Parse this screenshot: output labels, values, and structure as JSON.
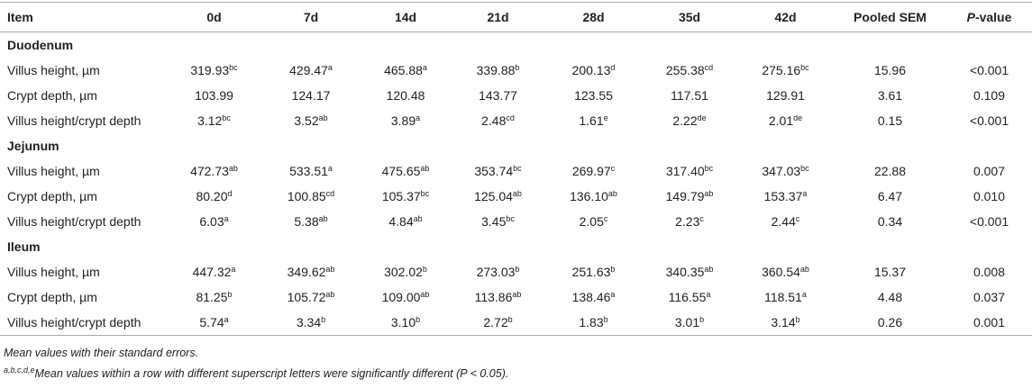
{
  "table": {
    "header": [
      "Item",
      "0d",
      "7d",
      "14d",
      "21d",
      "28d",
      "35d",
      "42d",
      "Pooled SEM",
      {
        "em": "P",
        "text": "-value"
      }
    ],
    "sections": [
      {
        "title": "Duodenum",
        "rows": [
          {
            "item": "Villus height, µm",
            "cells": [
              {
                "v": "319.93",
                "sup": "bc"
              },
              {
                "v": "429.47",
                "sup": "a"
              },
              {
                "v": "465.88",
                "sup": "a"
              },
              {
                "v": "339.88",
                "sup": "b"
              },
              {
                "v": "200.13",
                "sup": "d"
              },
              {
                "v": "255.38",
                "sup": "cd"
              },
              {
                "v": "275.16",
                "sup": "bc"
              }
            ],
            "sem": "15.96",
            "p": "<0.001"
          },
          {
            "item": "Crypt depth, µm",
            "cells": [
              {
                "v": "103.99"
              },
              {
                "v": "124.17"
              },
              {
                "v": "120.48"
              },
              {
                "v": "143.77"
              },
              {
                "v": "123.55"
              },
              {
                "v": "117.51"
              },
              {
                "v": "129.91"
              }
            ],
            "sem": "3.61",
            "p": "0.109"
          },
          {
            "item": "Villus height/crypt depth",
            "cells": [
              {
                "v": "3.12",
                "sup": "bc"
              },
              {
                "v": "3.52",
                "sup": "ab"
              },
              {
                "v": "3.89",
                "sup": "a"
              },
              {
                "v": "2.48",
                "sup": "cd"
              },
              {
                "v": "1.61",
                "sup": "e"
              },
              {
                "v": "2.22",
                "sup": "de"
              },
              {
                "v": "2.01",
                "sup": "de"
              }
            ],
            "sem": "0.15",
            "p": "<0.001"
          }
        ]
      },
      {
        "title": "Jejunum",
        "rows": [
          {
            "item": "Villus height, µm",
            "cells": [
              {
                "v": "472.73",
                "sup": "ab"
              },
              {
                "v": "533.51",
                "sup": "a"
              },
              {
                "v": "475.65",
                "sup": "ab"
              },
              {
                "v": "353.74",
                "sup": "bc"
              },
              {
                "v": "269.97",
                "sup": "c"
              },
              {
                "v": "317.40",
                "sup": "bc"
              },
              {
                "v": "347.03",
                "sup": "bc"
              }
            ],
            "sem": "22.88",
            "p": "0.007"
          },
          {
            "item": "Crypt depth, µm",
            "cells": [
              {
                "v": "80.20",
                "sup": "d"
              },
              {
                "v": "100.85",
                "sup": "cd"
              },
              {
                "v": "105.37",
                "sup": "bc"
              },
              {
                "v": "125.04",
                "sup": "ab"
              },
              {
                "v": "136.10",
                "sup": "ab"
              },
              {
                "v": "149.79",
                "sup": "ab"
              },
              {
                "v": "153.37",
                "sup": "a"
              }
            ],
            "sem": "6.47",
            "p": "0.010"
          },
          {
            "item": "Villus height/crypt depth",
            "cells": [
              {
                "v": "6.03",
                "sup": "a"
              },
              {
                "v": "5.38",
                "sup": "ab"
              },
              {
                "v": "4.84",
                "sup": "ab"
              },
              {
                "v": "3.45",
                "sup": "bc"
              },
              {
                "v": "2.05",
                "sup": "c"
              },
              {
                "v": "2.23",
                "sup": "c"
              },
              {
                "v": "2.44",
                "sup": "c"
              }
            ],
            "sem": "0.34",
            "p": "<0.001"
          }
        ]
      },
      {
        "title": "Ileum",
        "rows": [
          {
            "item": "Villus height, µm",
            "cells": [
              {
                "v": "447.32",
                "sup": "a"
              },
              {
                "v": "349.62",
                "sup": "ab"
              },
              {
                "v": "302.02",
                "sup": "b"
              },
              {
                "v": "273.03",
                "sup": "b"
              },
              {
                "v": "251.63",
                "sup": "b"
              },
              {
                "v": "340.35",
                "sup": "ab"
              },
              {
                "v": "360.54",
                "sup": "ab"
              }
            ],
            "sem": "15.37",
            "p": "0.008"
          },
          {
            "item": "Crypt depth, µm",
            "cells": [
              {
                "v": "81.25",
                "sup": "b"
              },
              {
                "v": "105.72",
                "sup": "ab"
              },
              {
                "v": "109.00",
                "sup": "ab"
              },
              {
                "v": "113.86",
                "sup": "ab"
              },
              {
                "v": "138.46",
                "sup": "a"
              },
              {
                "v": "116.55",
                "sup": "a"
              },
              {
                "v": "118.51",
                "sup": "a"
              }
            ],
            "sem": "4.48",
            "p": "0.037"
          },
          {
            "item": "Villus height/crypt depth",
            "cells": [
              {
                "v": "5.74",
                "sup": "a"
              },
              {
                "v": "3.34",
                "sup": "b"
              },
              {
                "v": "3.10",
                "sup": "b"
              },
              {
                "v": "2.72",
                "sup": "b"
              },
              {
                "v": "1.83",
                "sup": "b"
              },
              {
                "v": "3.01",
                "sup": "b"
              },
              {
                "v": "3.14",
                "sup": "b"
              }
            ],
            "sem": "0.26",
            "p": "0.001"
          }
        ]
      }
    ]
  },
  "notes": [
    {
      "text": "Mean values with their standard errors."
    },
    {
      "sup": "a,b,c,d,e",
      "text": "Mean values within a row with different superscript letters were significantly different (P < 0.05)."
    }
  ]
}
